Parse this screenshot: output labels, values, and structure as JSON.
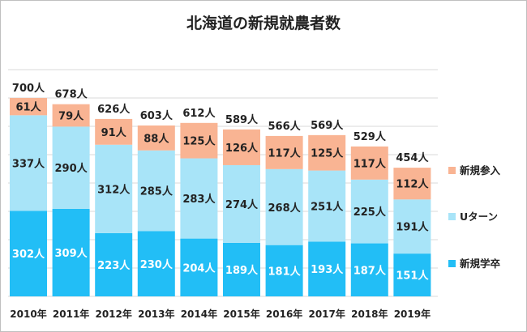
{
  "colors": {
    "new_entry": "#f9b493",
    "u_turn": "#a8e4f8",
    "new_graduate": "#22bef6",
    "grid": "#d9d9d9",
    "text_dark": "#222222",
    "text_light": "#ffffff"
  },
  "unit": "人",
  "chart_data": {
    "type": "bar",
    "stacked": true,
    "title": "北海道の新規就農者数",
    "categories": [
      "2010年",
      "2011年",
      "2012年",
      "2013年",
      "2014年",
      "2015年",
      "2016年",
      "2017年",
      "2018年",
      "2019年"
    ],
    "series": [
      {
        "name": "新規学卒",
        "values": [
          302,
          309,
          223,
          230,
          204,
          189,
          181,
          193,
          187,
          151
        ]
      },
      {
        "name": "Uターン",
        "values": [
          337,
          290,
          312,
          285,
          283,
          274,
          268,
          251,
          225,
          191
        ]
      },
      {
        "name": "新規参入",
        "values": [
          61,
          79,
          91,
          88,
          125,
          126,
          117,
          125,
          117,
          112
        ]
      }
    ],
    "totals": [
      700,
      678,
      626,
      603,
      612,
      589,
      566,
      569,
      529,
      454
    ],
    "ylim": [
      0,
      800
    ],
    "grid": true,
    "legend_position": "right"
  }
}
